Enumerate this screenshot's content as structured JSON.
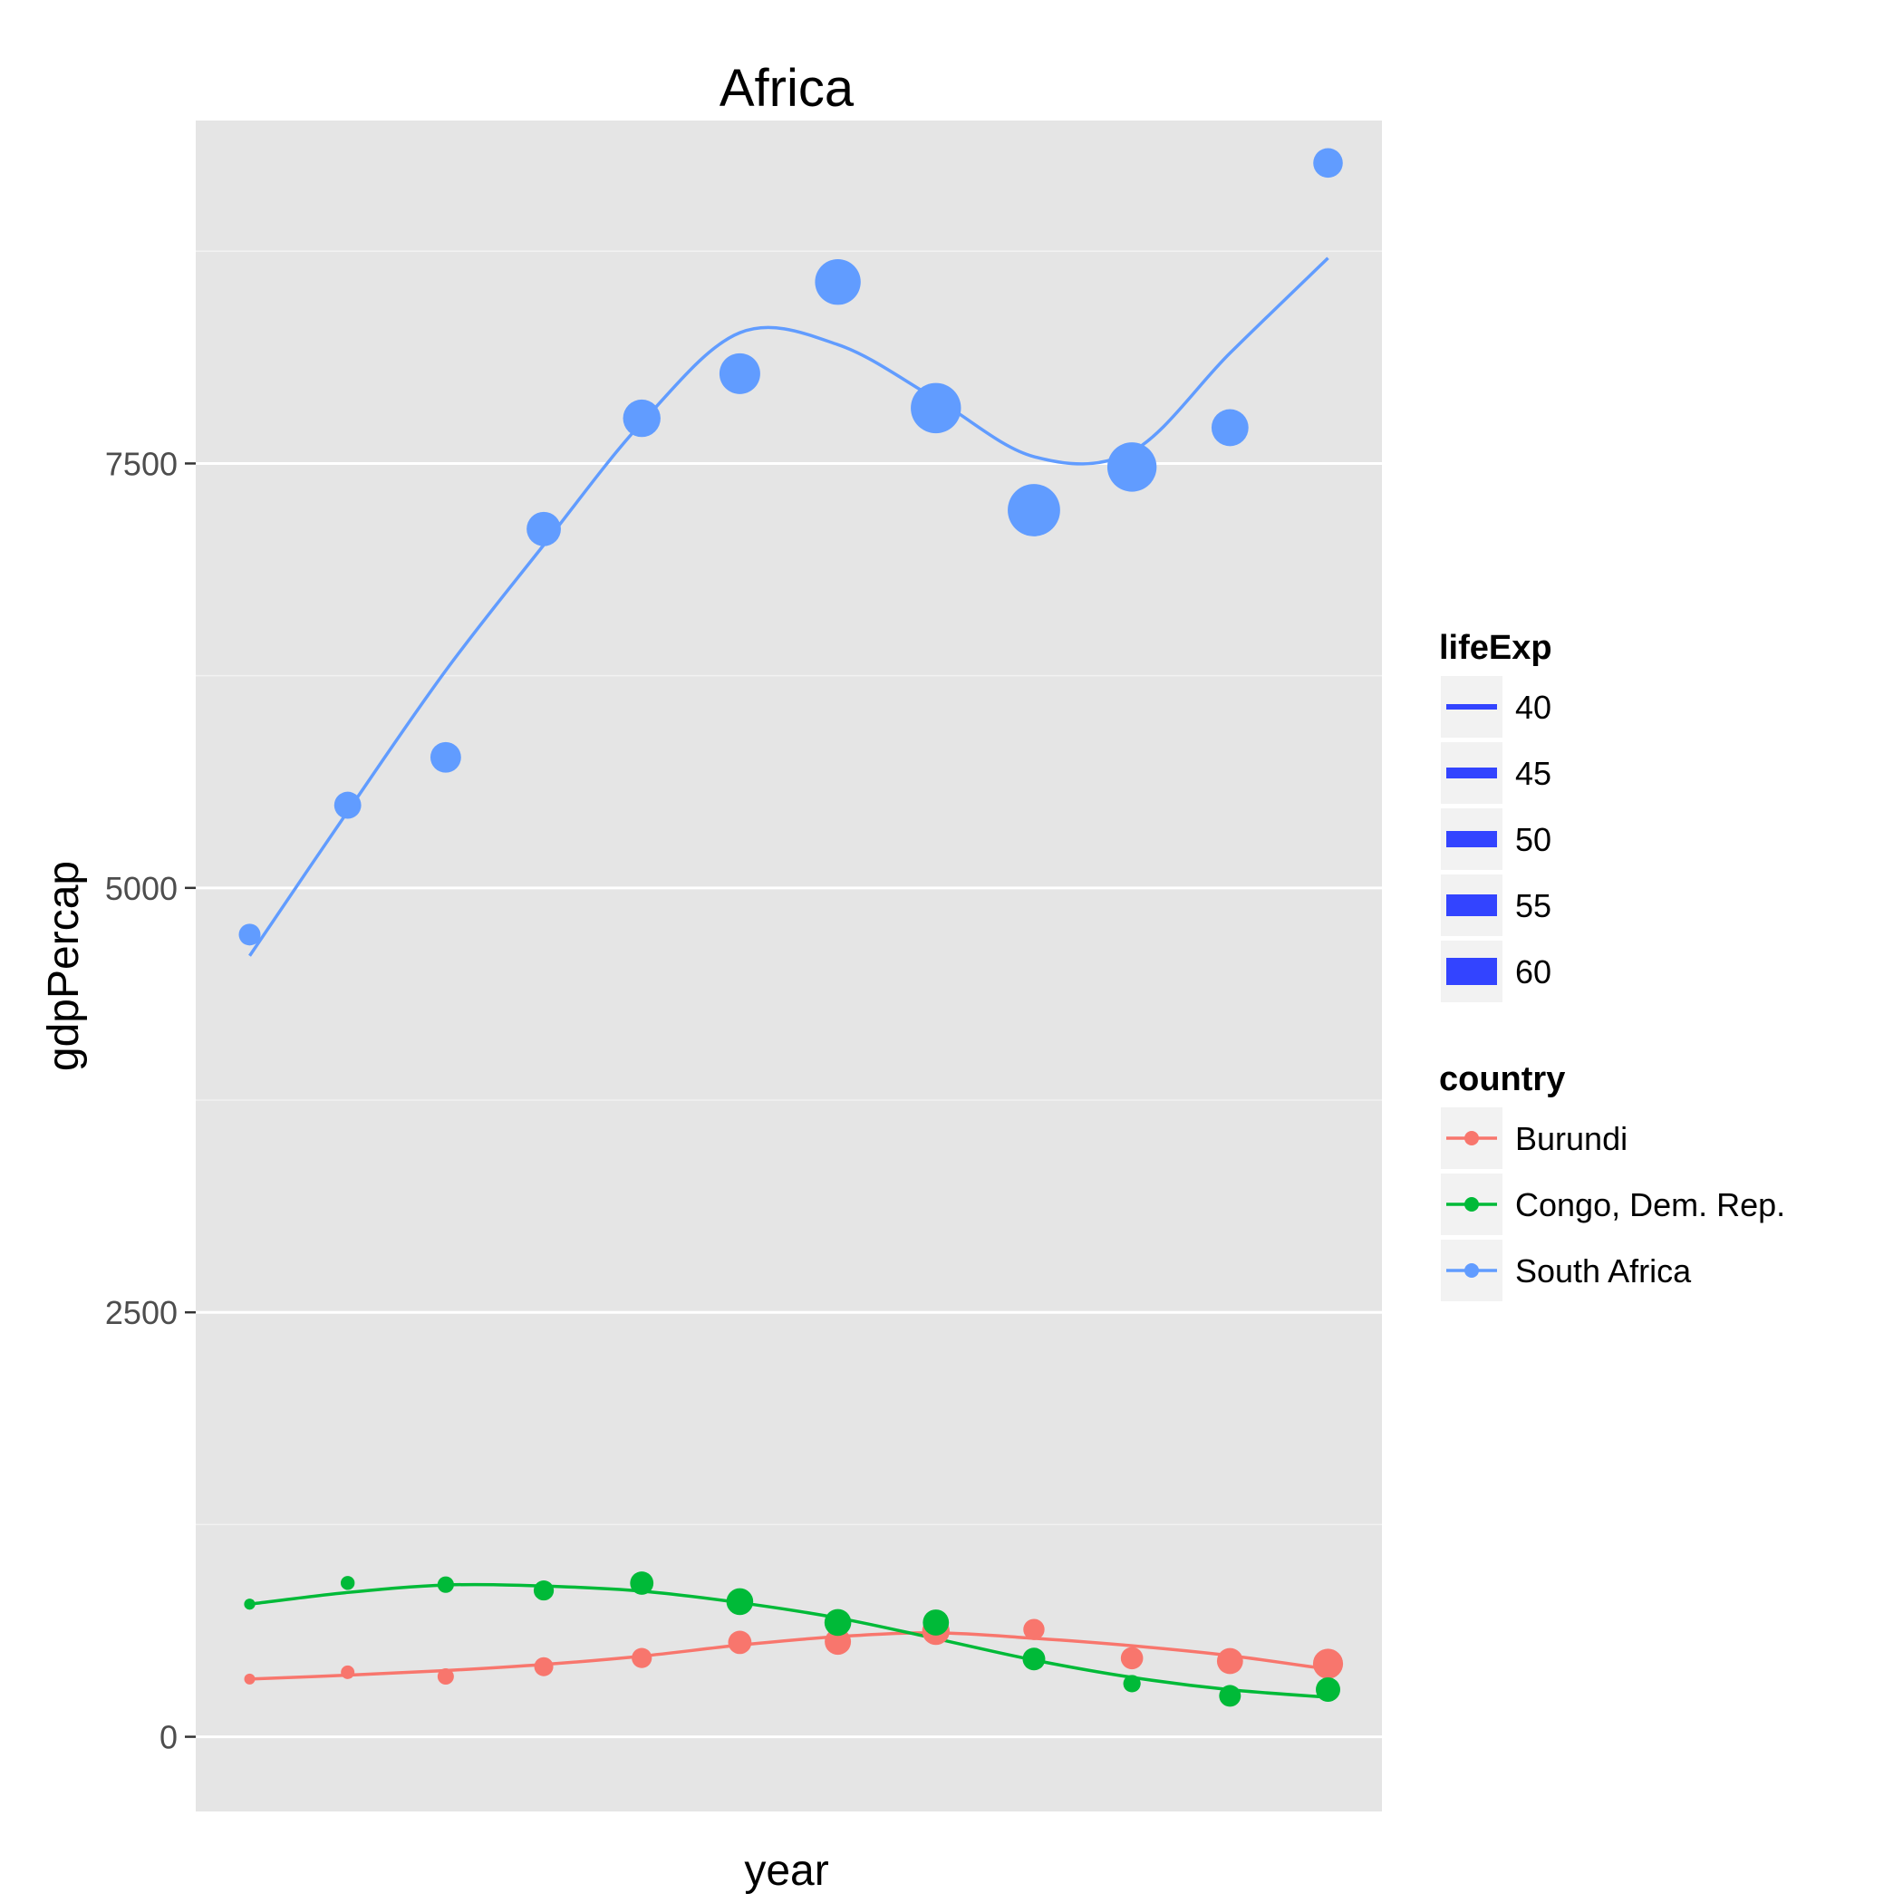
{
  "chart_data": {
    "type": "scatter",
    "title": "Africa",
    "xlabel": "year",
    "ylabel": "gdpPercap",
    "x": [
      1952,
      1957,
      1962,
      1967,
      1972,
      1977,
      1982,
      1987,
      1992,
      1997,
      2002,
      2007
    ],
    "xlim": [
      1949.25,
      2009.75
    ],
    "ylim": [
      -440,
      9520
    ],
    "yticks": [
      0,
      2500,
      5000,
      7500
    ],
    "ytick_labels": [
      "0",
      "2500",
      "5000",
      "7500"
    ],
    "grid": true,
    "smooth": true,
    "legend_position": "right",
    "series": [
      {
        "name": "Burundi",
        "color": "#F8766D",
        "values": [
          340,
          380,
          355,
          413,
          464,
          556,
          560,
          622,
          632,
          463,
          446,
          430
        ],
        "smooth": [
          340,
          363,
          390,
          426,
          475,
          540,
          590,
          612,
          580,
          536,
          478,
          398
        ],
        "lifeExp": [
          39.0,
          40.5,
          42.0,
          43.5,
          44.1,
          45.9,
          47.5,
          48.2,
          44.7,
          45.3,
          47.4,
          49.6
        ]
      },
      {
        "name": "Congo, Dem. Rep.",
        "color": "#00BA38",
        "values": [
          781,
          906,
          896,
          862,
          905,
          796,
          673,
          673,
          458,
          313,
          241,
          278
        ],
        "smooth": [
          781,
          850,
          894,
          888,
          858,
          790,
          700,
          578,
          452,
          350,
          277,
          233
        ],
        "lifeExp": [
          39.1,
          40.7,
          42.1,
          44.1,
          45.9,
          47.8,
          47.8,
          47.4,
          45.5,
          42.6,
          45.0,
          46.5
        ]
      },
      {
        "name": "South Africa",
        "color": "#619CFF",
        "values": [
          4725,
          5487,
          5769,
          7114,
          7766,
          8029,
          8569,
          7826,
          7225,
          7479,
          7711,
          9270
        ],
        "smooth": [
          4600,
          5450,
          6280,
          7020,
          7740,
          8270,
          8200,
          7880,
          7540,
          7570,
          8150,
          8710
        ],
        "lifeExp": [
          45.0,
          47.9,
          49.9,
          51.9,
          53.7,
          55.5,
          58.2,
          60.7,
          61.9,
          60.2,
          53.4,
          49.3
        ]
      }
    ],
    "legends": {
      "size": {
        "title": "lifeExp",
        "breaks": [
          40,
          45,
          50,
          55,
          60
        ],
        "labels": [
          "40",
          "45",
          "50",
          "55",
          "60"
        ]
      },
      "color": {
        "title": "country",
        "labels": [
          "Burundi",
          "Congo, Dem. Rep.",
          "South Africa"
        ]
      }
    },
    "colors": {
      "panel": "#E5E5E5",
      "grid_major": "#FFFFFF",
      "grid_minor": "#F2F2F2",
      "legend_key": "#F2F2F2",
      "size_key": "#3344FF"
    }
  }
}
